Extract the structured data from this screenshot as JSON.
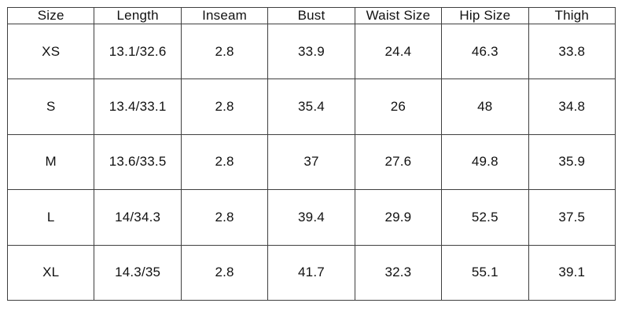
{
  "table": {
    "title": "size-chart",
    "headers": [
      "Size",
      "Length",
      "Inseam",
      "Bust",
      "Waist Size",
      "Hip Size",
      "Thigh"
    ],
    "rows": [
      {
        "cells": [
          "XS",
          "13.1/32.6",
          "2.8",
          "33.9",
          "24.4",
          "46.3",
          "33.8"
        ]
      },
      {
        "cells": [
          "S",
          "13.4/33.1",
          "2.8",
          "35.4",
          "26",
          "48",
          "34.8"
        ]
      },
      {
        "cells": [
          "M",
          "13.6/33.5",
          "2.8",
          "37",
          "27.6",
          "49.8",
          "35.9"
        ]
      },
      {
        "cells": [
          "L",
          "14/34.3",
          "2.8",
          "39.4",
          "29.9",
          "52.5",
          "37.5"
        ]
      },
      {
        "cells": [
          "XL",
          "14.3/35",
          "2.8",
          "41.7",
          "32.3",
          "55.1",
          "39.1"
        ]
      }
    ],
    "colors": {
      "border": "#3f3f3f",
      "text": "#111111",
      "background": "#ffffff"
    }
  }
}
